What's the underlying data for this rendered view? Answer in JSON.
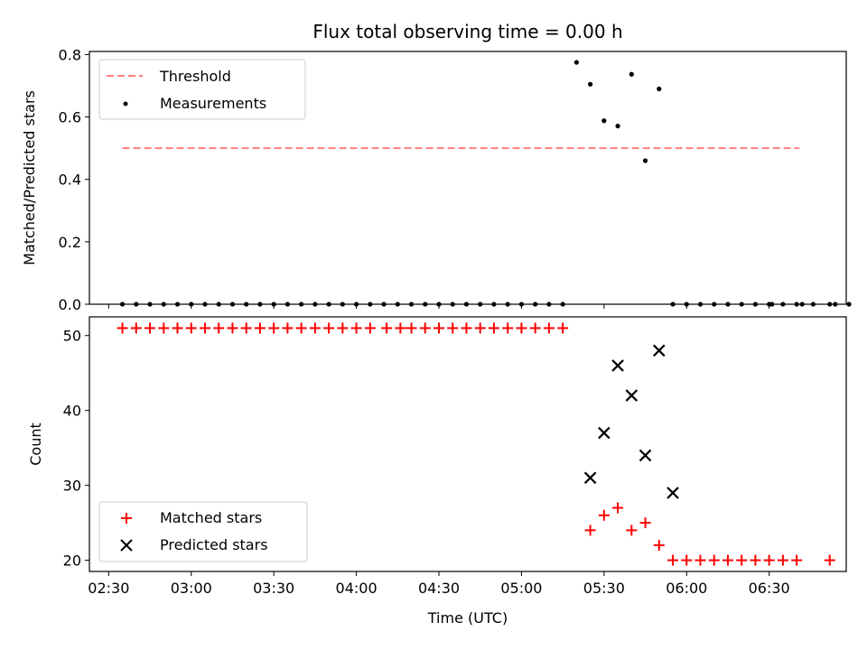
{
  "figure": {
    "title": "Flux total observing time = 0.00 h",
    "xlabel": "Time (UTC)"
  },
  "x_ticks": [
    "02:30",
    "03:00",
    "03:30",
    "04:00",
    "04:30",
    "05:00",
    "05:30",
    "06:00",
    "06:30"
  ],
  "chart_data": [
    {
      "type": "scatter",
      "ylabel": "Matched/Predicted stars",
      "x_units": "minutes after 02:30 UTC",
      "xlim": [
        -7,
        268
      ],
      "ylim": [
        0,
        0.81
      ],
      "yticks": [
        "0.0",
        "0.2",
        "0.4",
        "0.6",
        "0.8"
      ],
      "ytick_values": [
        0,
        0.2,
        0.4,
        0.6,
        0.8
      ],
      "legend_position": "top-left",
      "threshold": {
        "name": "Threshold",
        "y": 0.5,
        "x_range": [
          5,
          251
        ],
        "color": "#ff7f7f"
      },
      "series": [
        {
          "name": "Measurements",
          "color": "#000000",
          "marker": "dot",
          "x": [
            5,
            10,
            15,
            20,
            25,
            30,
            35,
            40,
            45,
            50,
            55,
            60,
            65,
            70,
            75,
            80,
            85,
            90,
            95,
            100,
            105,
            110,
            115,
            120,
            125,
            130,
            135,
            140,
            145,
            150,
            155,
            160,
            165,
            170,
            175,
            180,
            185,
            190,
            195,
            200,
            205,
            210,
            215,
            220,
            225,
            230,
            235,
            240,
            241,
            245,
            250,
            252,
            256,
            262,
            264,
            269
          ],
          "y": [
            0,
            0,
            0,
            0,
            0,
            0,
            0,
            0,
            0,
            0,
            0,
            0,
            0,
            0,
            0,
            0,
            0,
            0,
            0,
            0,
            0,
            0,
            0,
            0,
            0,
            0,
            0,
            0,
            0,
            0,
            0,
            0,
            0,
            0.775,
            0.705,
            0.588,
            0.571,
            0.737,
            0.46,
            0.69,
            0,
            0,
            0,
            0,
            0,
            0,
            0,
            0,
            0,
            0,
            0,
            0,
            0,
            0,
            0,
            0
          ]
        }
      ]
    },
    {
      "type": "scatter",
      "ylabel": "Count",
      "x_units": "minutes after 02:30 UTC",
      "xlim": [
        -7,
        268
      ],
      "ylim": [
        18.5,
        52.5
      ],
      "yticks": [
        "20",
        "30",
        "40",
        "50"
      ],
      "ytick_values": [
        20,
        30,
        40,
        50
      ],
      "legend_position": "bottom-left",
      "series": [
        {
          "name": "Matched stars",
          "color": "#ff0000",
          "marker": "plus",
          "x": [
            5,
            10,
            15,
            20,
            25,
            30,
            35,
            40,
            45,
            50,
            55,
            60,
            65,
            70,
            75,
            80,
            85,
            90,
            95,
            101,
            106,
            110,
            115,
            120,
            125,
            130,
            135,
            140,
            145,
            150,
            155,
            160,
            165,
            175,
            180,
            185,
            190,
            195,
            200,
            205,
            210,
            215,
            220,
            225,
            230,
            235,
            240,
            245,
            250,
            262
          ],
          "y": [
            51,
            51,
            51,
            51,
            51,
            51,
            51,
            51,
            51,
            51,
            51,
            51,
            51,
            51,
            51,
            51,
            51,
            51,
            51,
            51,
            51,
            51,
            51,
            51,
            51,
            51,
            51,
            51,
            51,
            51,
            51,
            51,
            51,
            24,
            26,
            27,
            24,
            25,
            22,
            20,
            20,
            20,
            20,
            20,
            20,
            20,
            20,
            20,
            20,
            20
          ]
        },
        {
          "name": "Predicted stars",
          "color": "#000000",
          "marker": "x",
          "x": [
            175,
            180,
            185,
            190,
            195,
            200,
            205
          ],
          "y": [
            31,
            37,
            46,
            42,
            34,
            48,
            29
          ]
        }
      ]
    }
  ]
}
